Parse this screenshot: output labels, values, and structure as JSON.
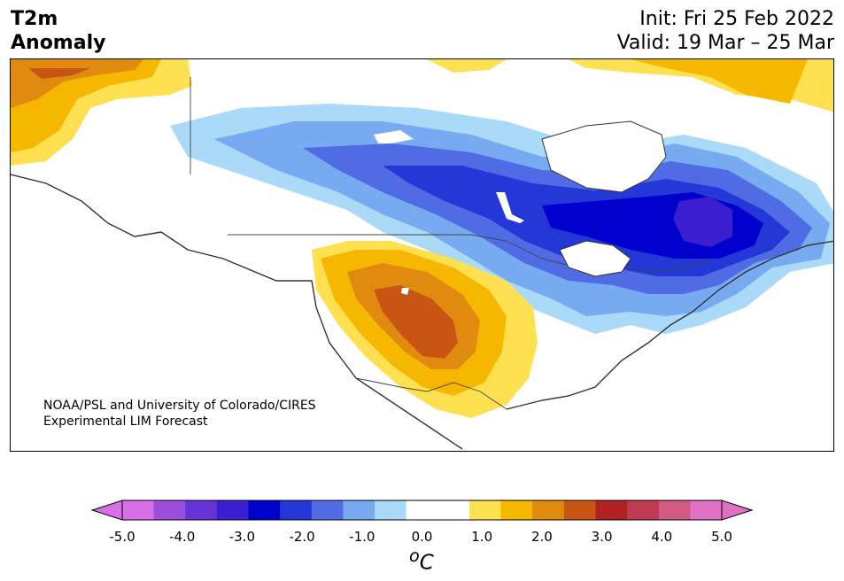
{
  "title": {
    "left_line1": "T2m",
    "left_line2": "Anomaly",
    "init": "Init: Fri 25 Feb 2022",
    "valid": "Valid: 19 Mar – 25 Mar"
  },
  "credit": {
    "line1": "NOAA/PSL and University of Colorado/CIRES",
    "line2": "Experimental LIM Forecast"
  },
  "colorbar": {
    "colors": [
      "#d670e6",
      "#9c4ddc",
      "#6634d6",
      "#3a1ecf",
      "#0000cd",
      "#2438d8",
      "#4f6ce5",
      "#78aaf2",
      "#aadaf8",
      "#ffffff",
      "#ffffff",
      "#ffe050",
      "#f5b700",
      "#e08a10",
      "#c85514",
      "#b02222",
      "#c03a52",
      "#d25a84",
      "#e070c4"
    ],
    "ticks": [
      "-5.0",
      "-4.0",
      "-3.0",
      "-2.0",
      "-1.0",
      "0.0",
      "1.0",
      "2.0",
      "3.0",
      "4.0",
      "5.0"
    ],
    "unit_sup": "o",
    "unit": "C"
  },
  "map": {
    "region": "North America",
    "anomaly_palette": {
      "warm1": "#ffe050",
      "warm2": "#f5b700",
      "warm3": "#e08a10",
      "warm4": "#c85514",
      "cool1": "#aadaf8",
      "cool2": "#78aaf2",
      "cool3": "#4f6ce5",
      "cool4": "#2438d8",
      "cool5": "#0000cd",
      "cool6": "#3a1ecf"
    }
  }
}
